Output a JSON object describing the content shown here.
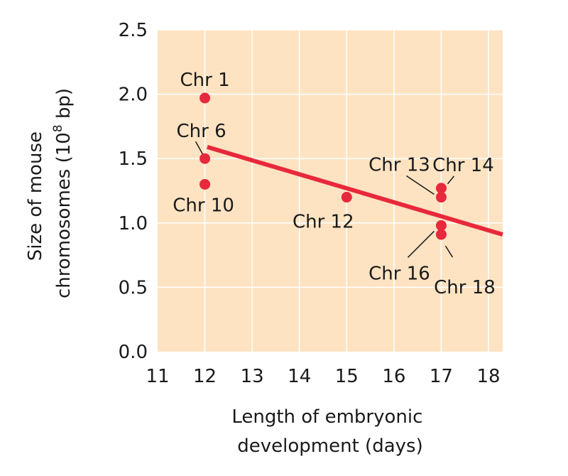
{
  "chart_data": {
    "type": "scatter",
    "xlabel_lines": [
      "Length of embryonic",
      "development (days)"
    ],
    "ylabel_lines": [
      "Size of mouse",
      "chromosomes (10",
      "8",
      " bp)"
    ],
    "xlim": [
      11,
      18.3
    ],
    "ylim": [
      0,
      2.5
    ],
    "xticks": [
      "11",
      "12",
      "13",
      "14",
      "15",
      "16",
      "17",
      "18"
    ],
    "yticks": [
      "0.0",
      "0.5",
      "1.0",
      "1.5",
      "2.0",
      "2.5"
    ],
    "grid": true,
    "colors": {
      "background": "#fde3c2",
      "marker": "#e8283c",
      "trend": "#e8283c"
    },
    "points": [
      {
        "x": 12,
        "y": 1.97,
        "label": "Chr 1"
      },
      {
        "x": 12,
        "y": 1.5,
        "label": "Chr 6"
      },
      {
        "x": 12,
        "y": 1.3,
        "label": "Chr 10"
      },
      {
        "x": 15,
        "y": 1.2,
        "label": "Chr 12"
      },
      {
        "x": 17,
        "y": 1.2,
        "label": "Chr 13"
      },
      {
        "x": 17,
        "y": 1.27,
        "label": "Chr 14"
      },
      {
        "x": 17,
        "y": 0.98,
        "label": "Chr 16"
      },
      {
        "x": 17,
        "y": 0.91,
        "label": "Chr 18"
      }
    ],
    "trendline": {
      "x": [
        12.05,
        18.3
      ],
      "y": [
        1.59,
        0.91
      ]
    }
  }
}
